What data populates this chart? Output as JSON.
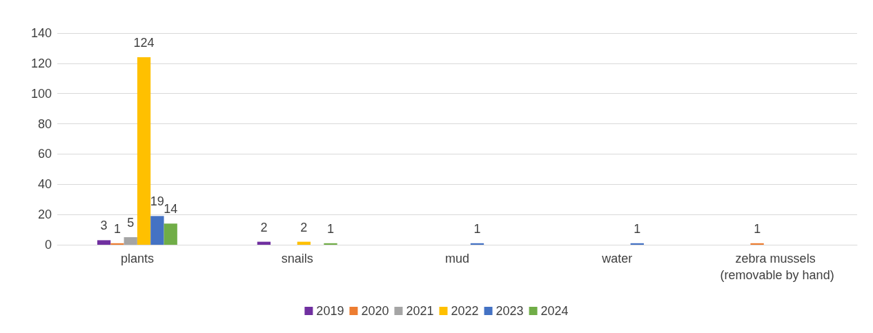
{
  "chart_data": {
    "type": "bar",
    "categories": [
      "plants",
      "snails",
      "mud",
      "water",
      "zebra mussels (removable by hand)"
    ],
    "series": [
      {
        "name": "2019",
        "color": "#7030a0",
        "values": [
          3,
          2,
          null,
          null,
          null
        ]
      },
      {
        "name": "2020",
        "color": "#ed7d31",
        "values": [
          1,
          null,
          null,
          null,
          1
        ]
      },
      {
        "name": "2021",
        "color": "#a5a5a5",
        "values": [
          5,
          null,
          null,
          null,
          null
        ]
      },
      {
        "name": "2022",
        "color": "#ffc000",
        "values": [
          124,
          2,
          null,
          null,
          null
        ]
      },
      {
        "name": "2023",
        "color": "#4472c4",
        "values": [
          19,
          null,
          1,
          1,
          null
        ]
      },
      {
        "name": "2024",
        "color": "#70ad47",
        "values": [
          14,
          1,
          null,
          null,
          null
        ]
      }
    ],
    "ylim": [
      0,
      140
    ],
    "yticks": [
      0,
      20,
      40,
      60,
      80,
      100,
      120,
      140
    ],
    "grid": "y",
    "legend": "bottom",
    "data_labels": true
  }
}
